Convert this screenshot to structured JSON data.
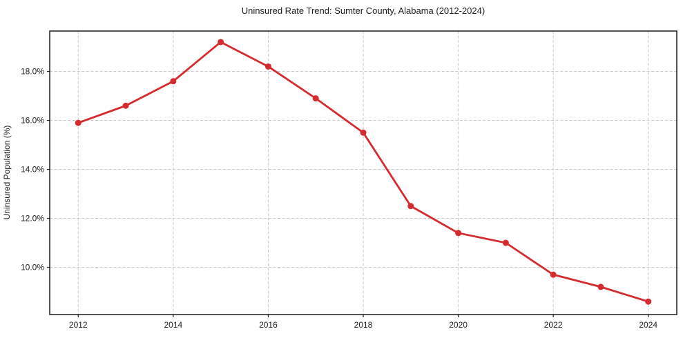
{
  "chart_data": {
    "type": "line",
    "title": "Uninsured Rate Trend: Sumter County, Alabama (2012-2024)",
    "xlabel": "",
    "ylabel": "Uninsured Population (%)",
    "x": [
      2012,
      2013,
      2014,
      2015,
      2016,
      2017,
      2018,
      2019,
      2020,
      2021,
      2022,
      2023,
      2024
    ],
    "values": [
      15.9,
      16.6,
      17.6,
      19.2,
      18.2,
      16.9,
      15.5,
      12.5,
      11.4,
      11.0,
      9.7,
      9.2,
      8.6
    ],
    "x_ticks": [
      2012,
      2014,
      2016,
      2018,
      2020,
      2022,
      2024
    ],
    "x_tick_labels": [
      "2012",
      "2014",
      "2016",
      "2018",
      "2020",
      "2022",
      "2024"
    ],
    "y_ticks": [
      10,
      12,
      14,
      16,
      18
    ],
    "y_tick_labels": [
      "10.0%",
      "12.0%",
      "14.0%",
      "16.0%",
      "18.0%"
    ],
    "xlim": [
      2011.4,
      2024.6
    ],
    "ylim": [
      8.07,
      19.65
    ],
    "grid": true,
    "legend_position": "none",
    "line_color": "#d62b2e",
    "marker_color": "#d62b2e",
    "grid_color": "#c9c9c9",
    "marker_radius": 4.5
  }
}
